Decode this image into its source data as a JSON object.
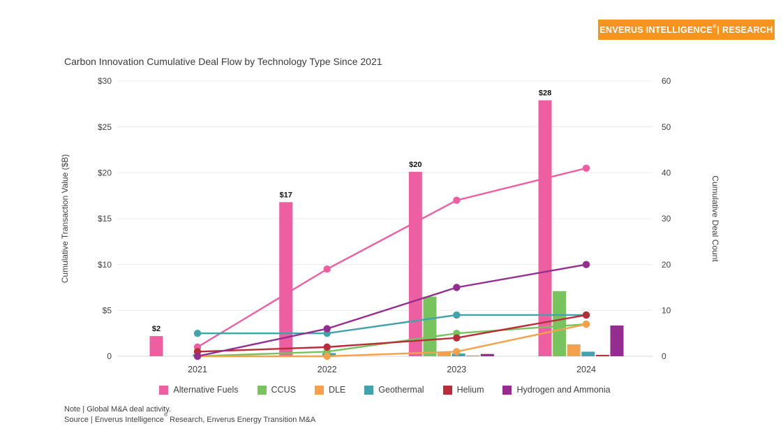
{
  "header": {
    "badge": {
      "brand": "ENVERUS INTELLIGENCE",
      "reg": "®",
      "unit": " | RESEARCH",
      "bg_color": "#F7941E"
    }
  },
  "footer": {
    "note": "Note | Global M&A deal activity.",
    "source_prefix": "Source | Enverus Intelligence",
    "source_reg": "®",
    "source_suffix": " Research, Enverus Energy Transition M&A"
  },
  "chart_data": {
    "type": "bar",
    "subtype": "grouped bars (left axis, $B) with line+marker overlay (right axis, deal count), dual y-axes",
    "title": "Carbon Innovation Cumulative Deal Flow by Technology Type Since 2021",
    "categories": [
      "2021",
      "2022",
      "2023",
      "2024"
    ],
    "ylabel": "Cumulative Transaction Value ($B)",
    "y2label": "Cumulative Deal Count",
    "ylim": [
      0,
      30
    ],
    "y2lim": [
      0,
      60
    ],
    "yticks": [
      "$30",
      "$25",
      "$20",
      "$15",
      "$10",
      "$5",
      "0"
    ],
    "y2ticks": [
      "60",
      "50",
      "40",
      "30",
      "20",
      "10",
      "0"
    ],
    "grid": "horizontal",
    "legend_position": "bottom",
    "series": [
      {
        "name": "Alternative Fuels",
        "color": "#EE5FA1",
        "bar_values_usd_b": [
          2.2,
          16.8,
          20.1,
          27.9
        ],
        "bar_labels": [
          "$2",
          "$17",
          "$20",
          "$28"
        ],
        "line_deal_count": [
          2,
          19,
          34,
          41
        ]
      },
      {
        "name": "CCUS",
        "color": "#79C35F",
        "bar_values_usd_b": [
          0,
          0,
          6.5,
          7.1
        ],
        "bar_labels": null,
        "line_deal_count": [
          0,
          1,
          5,
          7
        ]
      },
      {
        "name": "DLE",
        "color": "#F5A14C",
        "bar_values_usd_b": [
          0,
          0,
          0.45,
          1.3
        ],
        "bar_labels": null,
        "line_deal_count": [
          0,
          0,
          1,
          7
        ]
      },
      {
        "name": "Geothermal",
        "color": "#43A3AB",
        "bar_values_usd_b": [
          0.2,
          0.35,
          0.3,
          0.5
        ],
        "bar_labels": null,
        "line_deal_count": [
          5,
          5,
          9,
          9
        ]
      },
      {
        "name": "Helium",
        "color": "#B82E38",
        "bar_values_usd_b": [
          0,
          0,
          0.05,
          0.15
        ],
        "bar_labels": null,
        "line_deal_count": [
          1,
          2,
          4,
          9
        ]
      },
      {
        "name": "Hydrogen and Ammonia",
        "color": "#952D90",
        "bar_values_usd_b": [
          0,
          0,
          0.25,
          3.35
        ],
        "bar_labels": null,
        "line_deal_count": [
          0,
          6,
          15,
          20
        ]
      }
    ]
  }
}
